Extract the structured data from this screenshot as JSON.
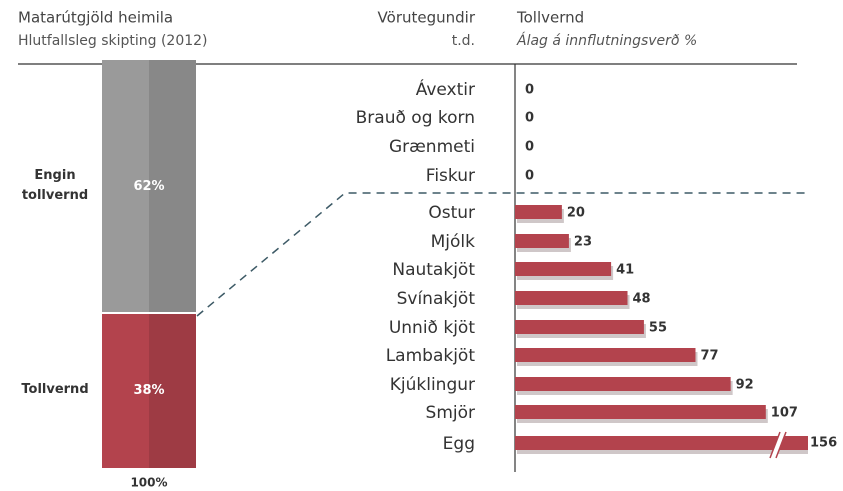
{
  "chart_data": [
    {
      "type": "stacked-bar",
      "title": "Matarútgjöld heimila",
      "subtitle": "Hlutfallsleg skipting (2012)",
      "series": [
        {
          "name": "Tollvernd",
          "color": "#b3434d",
          "values": [
            38
          ],
          "value_labels": [
            "38%"
          ]
        },
        {
          "name": "Engin tollvernd",
          "color": "#9a9a9a",
          "values": [
            62
          ],
          "value_labels": [
            "62%"
          ]
        }
      ],
      "ylim": [
        0,
        100
      ],
      "total": 100,
      "total_label": "100%"
    },
    {
      "type": "hbar",
      "title": "Tollvernd",
      "subtitle": "Álag á innflutningsverð %",
      "category_title": "Vörutegundir",
      "category_subtitle": "t.d.",
      "categories": [
        "Ávextir",
        "Brauð og korn",
        "Grænmeti",
        "Fiskur",
        "Ostur",
        "Mjólk",
        "Nautakjöt",
        "Svínakjöt",
        "Unnið kjöt",
        "Lambakjöt",
        "Kjúklingur",
        "Smjör",
        "Egg"
      ],
      "values": [
        0,
        0,
        0,
        0,
        20,
        23,
        41,
        48,
        55,
        77,
        92,
        107,
        156
      ],
      "color": "#b3434d",
      "xlim": [
        0,
        125
      ],
      "axis_break": true
    }
  ]
}
